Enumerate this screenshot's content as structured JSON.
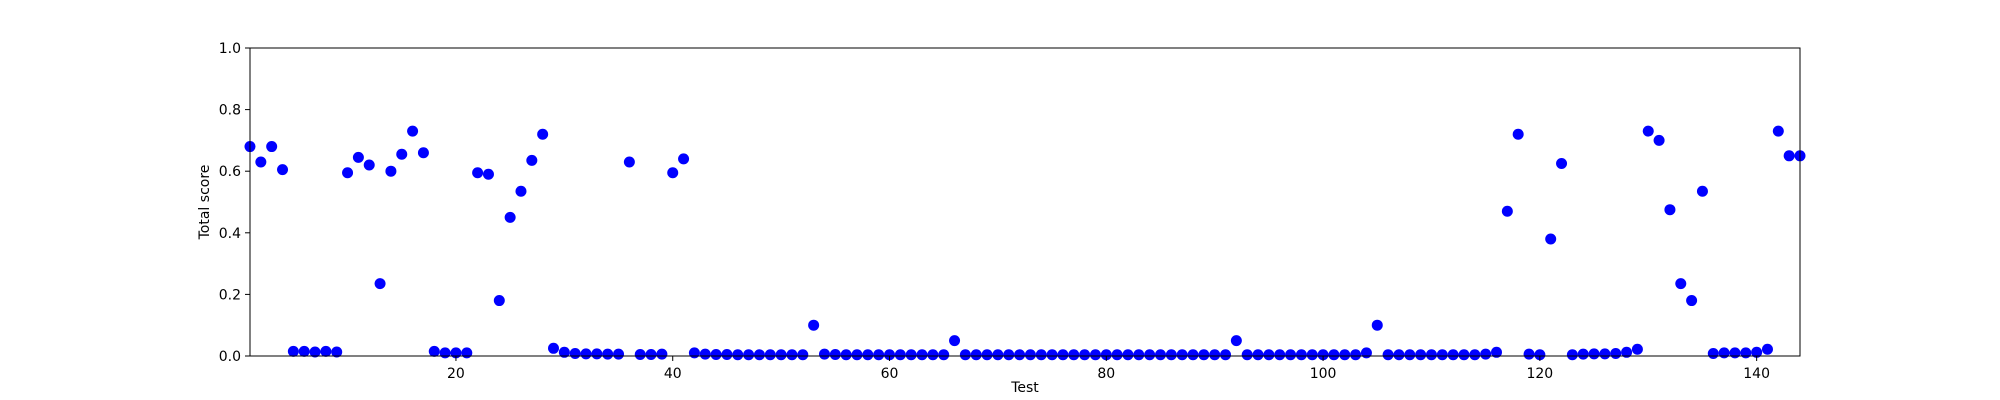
{
  "chart_data": {
    "type": "scatter",
    "xlabel": "Test",
    "ylabel": "Total score",
    "xlim": [
      1,
      144
    ],
    "ylim": [
      0.0,
      1.0
    ],
    "x_ticks": [
      20,
      40,
      60,
      80,
      100,
      120,
      140
    ],
    "y_ticks": [
      0.0,
      0.2,
      0.4,
      0.6,
      0.8,
      1.0
    ],
    "x_tick_labels": [
      "20",
      "40",
      "60",
      "80",
      "100",
      "120",
      "140"
    ],
    "y_tick_labels": [
      "0.0",
      "0.2",
      "0.4",
      "0.6",
      "0.8",
      "1.0"
    ],
    "grid": false,
    "marker_color": "#0000ff",
    "x": [
      1,
      2,
      3,
      4,
      5,
      6,
      7,
      8,
      9,
      10,
      11,
      12,
      13,
      14,
      15,
      16,
      17,
      18,
      19,
      20,
      21,
      22,
      23,
      24,
      25,
      26,
      27,
      28,
      29,
      30,
      31,
      32,
      33,
      34,
      35,
      36,
      37,
      38,
      39,
      40,
      41,
      42,
      43,
      44,
      45,
      46,
      47,
      48,
      49,
      50,
      51,
      52,
      53,
      54,
      55,
      56,
      57,
      58,
      59,
      60,
      61,
      62,
      63,
      64,
      65,
      66,
      67,
      68,
      69,
      70,
      71,
      72,
      73,
      74,
      75,
      76,
      77,
      78,
      79,
      80,
      81,
      82,
      83,
      84,
      85,
      86,
      87,
      88,
      89,
      90,
      91,
      92,
      93,
      94,
      95,
      96,
      97,
      98,
      99,
      100,
      101,
      102,
      103,
      104,
      105,
      106,
      107,
      108,
      109,
      110,
      111,
      112,
      113,
      114,
      115,
      116,
      117,
      118,
      119,
      120,
      121,
      122,
      123,
      124,
      125,
      126,
      127,
      128,
      129,
      130,
      131,
      132,
      133,
      134,
      135,
      136,
      137,
      138,
      139,
      140,
      141,
      142,
      143,
      144
    ],
    "y": [
      0.68,
      0.63,
      0.68,
      0.605,
      0.015,
      0.015,
      0.013,
      0.015,
      0.013,
      0.595,
      0.645,
      0.62,
      0.235,
      0.6,
      0.655,
      0.73,
      0.66,
      0.015,
      0.01,
      0.01,
      0.01,
      0.595,
      0.59,
      0.18,
      0.45,
      0.535,
      0.635,
      0.72,
      0.025,
      0.012,
      0.008,
      0.007,
      0.007,
      0.006,
      0.006,
      0.63,
      0.005,
      0.005,
      0.006,
      0.595,
      0.64,
      0.01,
      0.006,
      0.005,
      0.005,
      0.004,
      0.004,
      0.004,
      0.004,
      0.004,
      0.004,
      0.004,
      0.1,
      0.006,
      0.005,
      0.004,
      0.004,
      0.004,
      0.004,
      0.004,
      0.004,
      0.004,
      0.004,
      0.004,
      0.004,
      0.05,
      0.004,
      0.004,
      0.004,
      0.004,
      0.004,
      0.004,
      0.004,
      0.004,
      0.004,
      0.004,
      0.004,
      0.004,
      0.004,
      0.004,
      0.004,
      0.004,
      0.004,
      0.004,
      0.004,
      0.004,
      0.004,
      0.004,
      0.004,
      0.004,
      0.004,
      0.05,
      0.004,
      0.004,
      0.004,
      0.004,
      0.004,
      0.004,
      0.004,
      0.004,
      0.004,
      0.004,
      0.004,
      0.01,
      0.1,
      0.004,
      0.004,
      0.004,
      0.004,
      0.004,
      0.004,
      0.004,
      0.004,
      0.004,
      0.006,
      0.012,
      0.47,
      0.72,
      0.006,
      0.004,
      0.38,
      0.625,
      0.004,
      0.006,
      0.007,
      0.007,
      0.008,
      0.012,
      0.022,
      0.73,
      0.7,
      0.475,
      0.235,
      0.18,
      0.535,
      0.008,
      0.01,
      0.01,
      0.01,
      0.012,
      0.022,
      0.73,
      0.65,
      0.65
    ]
  }
}
